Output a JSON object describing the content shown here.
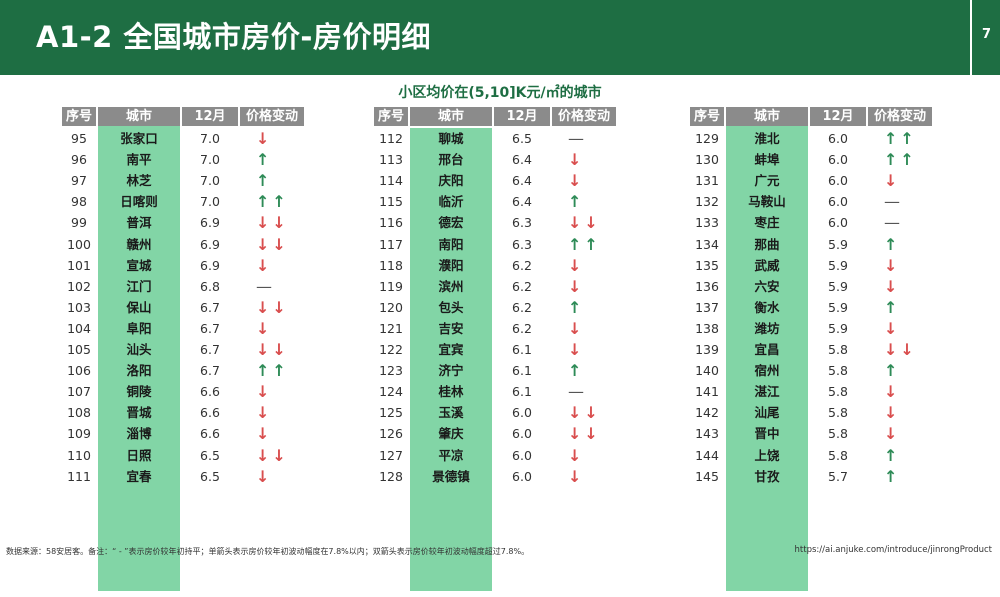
{
  "header": {
    "title": "A1-2 全国城市房价-房价明细",
    "page_number": "7"
  },
  "subtitle": "小区均价在(5,10]K元/㎡的城市",
  "columns": {
    "rank": "序号",
    "city": "城市",
    "month": "12月",
    "change": "价格变动"
  },
  "tables": [
    {
      "rows": [
        {
          "rank": "95",
          "city": "张家口",
          "price": "7.0",
          "change": "down"
        },
        {
          "rank": "96",
          "city": "南平",
          "price": "7.0",
          "change": "up"
        },
        {
          "rank": "97",
          "city": "林芝",
          "price": "7.0",
          "change": "up"
        },
        {
          "rank": "98",
          "city": "日喀则",
          "price": "7.0",
          "change": "up2"
        },
        {
          "rank": "99",
          "city": "普洱",
          "price": "6.9",
          "change": "down2"
        },
        {
          "rank": "100",
          "city": "赣州",
          "price": "6.9",
          "change": "down2"
        },
        {
          "rank": "101",
          "city": "宣城",
          "price": "6.9",
          "change": "down"
        },
        {
          "rank": "102",
          "city": "江门",
          "price": "6.8",
          "change": "flat"
        },
        {
          "rank": "103",
          "city": "保山",
          "price": "6.7",
          "change": "down2"
        },
        {
          "rank": "104",
          "city": "阜阳",
          "price": "6.7",
          "change": "down"
        },
        {
          "rank": "105",
          "city": "汕头",
          "price": "6.7",
          "change": "down2"
        },
        {
          "rank": "106",
          "city": "洛阳",
          "price": "6.7",
          "change": "up2"
        },
        {
          "rank": "107",
          "city": "铜陵",
          "price": "6.6",
          "change": "down"
        },
        {
          "rank": "108",
          "city": "晋城",
          "price": "6.6",
          "change": "down"
        },
        {
          "rank": "109",
          "city": "淄博",
          "price": "6.6",
          "change": "down"
        },
        {
          "rank": "110",
          "city": "日照",
          "price": "6.5",
          "change": "down2"
        },
        {
          "rank": "111",
          "city": "宜春",
          "price": "6.5",
          "change": "down"
        }
      ]
    },
    {
      "rows": [
        {
          "rank": "112",
          "city": "聊城",
          "price": "6.5",
          "change": "flat"
        },
        {
          "rank": "113",
          "city": "邢台",
          "price": "6.4",
          "change": "down"
        },
        {
          "rank": "114",
          "city": "庆阳",
          "price": "6.4",
          "change": "down"
        },
        {
          "rank": "115",
          "city": "临沂",
          "price": "6.4",
          "change": "up"
        },
        {
          "rank": "116",
          "city": "德宏",
          "price": "6.3",
          "change": "down2"
        },
        {
          "rank": "117",
          "city": "南阳",
          "price": "6.3",
          "change": "up2"
        },
        {
          "rank": "118",
          "city": "濮阳",
          "price": "6.2",
          "change": "down"
        },
        {
          "rank": "119",
          "city": "滨州",
          "price": "6.2",
          "change": "down"
        },
        {
          "rank": "120",
          "city": "包头",
          "price": "6.2",
          "change": "up"
        },
        {
          "rank": "121",
          "city": "吉安",
          "price": "6.2",
          "change": "down"
        },
        {
          "rank": "122",
          "city": "宜宾",
          "price": "6.1",
          "change": "down"
        },
        {
          "rank": "123",
          "city": "济宁",
          "price": "6.1",
          "change": "up"
        },
        {
          "rank": "124",
          "city": "桂林",
          "price": "6.1",
          "change": "flat"
        },
        {
          "rank": "125",
          "city": "玉溪",
          "price": "6.0",
          "change": "down2"
        },
        {
          "rank": "126",
          "city": "肇庆",
          "price": "6.0",
          "change": "down2"
        },
        {
          "rank": "127",
          "city": "平凉",
          "price": "6.0",
          "change": "down"
        },
        {
          "rank": "128",
          "city": "景德镇",
          "price": "6.0",
          "change": "down"
        }
      ]
    },
    {
      "rows": [
        {
          "rank": "129",
          "city": "淮北",
          "price": "6.0",
          "change": "up2"
        },
        {
          "rank": "130",
          "city": "蚌埠",
          "price": "6.0",
          "change": "up2"
        },
        {
          "rank": "131",
          "city": "广元",
          "price": "6.0",
          "change": "down"
        },
        {
          "rank": "132",
          "city": "马鞍山",
          "price": "6.0",
          "change": "flat"
        },
        {
          "rank": "133",
          "city": "枣庄",
          "price": "6.0",
          "change": "flat"
        },
        {
          "rank": "134",
          "city": "那曲",
          "price": "5.9",
          "change": "up"
        },
        {
          "rank": "135",
          "city": "武威",
          "price": "5.9",
          "change": "down"
        },
        {
          "rank": "136",
          "city": "六安",
          "price": "5.9",
          "change": "down"
        },
        {
          "rank": "137",
          "city": "衡水",
          "price": "5.9",
          "change": "up"
        },
        {
          "rank": "138",
          "city": "潍坊",
          "price": "5.9",
          "change": "down"
        },
        {
          "rank": "139",
          "city": "宜昌",
          "price": "5.8",
          "change": "down2"
        },
        {
          "rank": "140",
          "city": "宿州",
          "price": "5.8",
          "change": "up"
        },
        {
          "rank": "141",
          "city": "湛江",
          "price": "5.8",
          "change": "down"
        },
        {
          "rank": "142",
          "city": "汕尾",
          "price": "5.8",
          "change": "down"
        },
        {
          "rank": "143",
          "city": "晋中",
          "price": "5.8",
          "change": "down"
        },
        {
          "rank": "144",
          "city": "上饶",
          "price": "5.8",
          "change": "up"
        },
        {
          "rank": "145",
          "city": "甘孜",
          "price": "5.7",
          "change": "up"
        }
      ]
    }
  ],
  "symbols": {
    "up": "↑",
    "up2": "↑↑",
    "down": "↓",
    "down2": "↓↓",
    "flat": "—"
  },
  "colors": {
    "header_bg": "#1e6e43",
    "column_header_bg": "#8b8b8b",
    "city_bg": "#82d5a6",
    "arrow_down": "#d94e4e",
    "arrow_up": "#2e8b57"
  },
  "footer": {
    "note": "数据来源：58安居客。备注：“ - ”表示房价较年初持平；单箭头表示房价较年初波动幅度在7.8%以内；双箭头表示房价较年初波动幅度超过7.8%。",
    "url": "https://ai.anjuke.com/introduce/jinrongProduct"
  }
}
